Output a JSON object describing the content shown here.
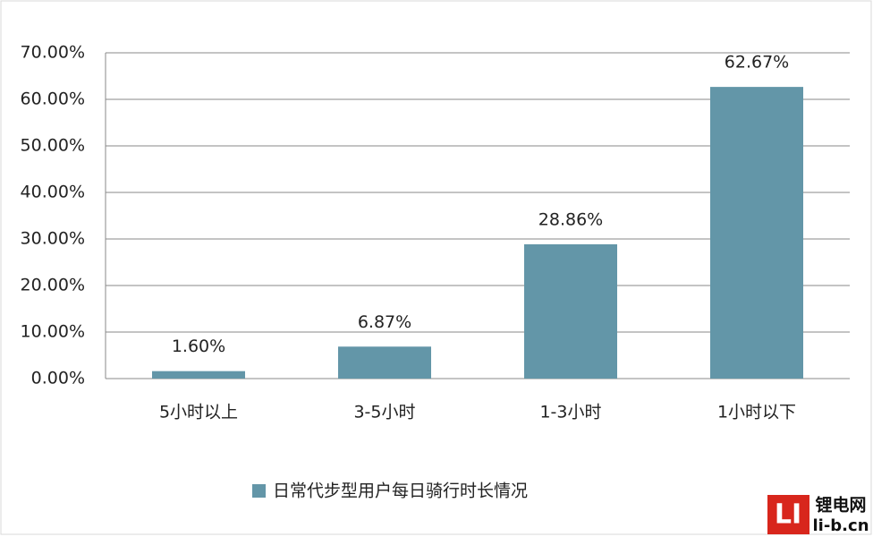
{
  "chart_data": {
    "type": "bar",
    "categories": [
      "5小时以上",
      "3-5小时",
      "1-3小时",
      "1小时以下"
    ],
    "series": [
      {
        "name": "日常代步型用户每日骑行时长情况",
        "color": "#6396a8",
        "values": [
          1.6,
          6.87,
          28.86,
          62.67
        ],
        "value_labels": [
          "1.60%",
          "6.87%",
          "28.86%",
          "62.67%"
        ]
      }
    ],
    "ylim": [
      0,
      70
    ],
    "yticks": [
      {
        "value": 0,
        "label": "0.00%"
      },
      {
        "value": 10,
        "label": "10.00%"
      },
      {
        "value": 20,
        "label": "20.00%"
      },
      {
        "value": 30,
        "label": "30.00%"
      },
      {
        "value": 40,
        "label": "40.00%"
      },
      {
        "value": 50,
        "label": "50.00%"
      },
      {
        "value": 60,
        "label": "60.00%"
      },
      {
        "value": 70,
        "label": "70.00%"
      }
    ],
    "grid": true,
    "legend": "bottom"
  },
  "watermark": {
    "logo": "LI",
    "name": "锂电网",
    "url": "li-b.cn"
  }
}
